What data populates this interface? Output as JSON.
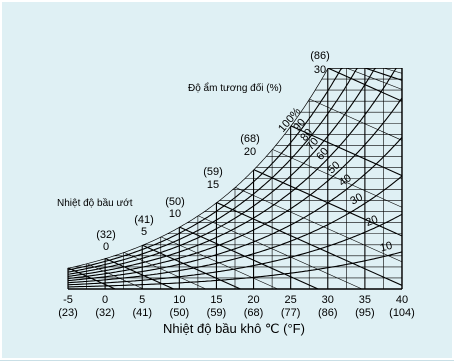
{
  "chart_data": {
    "type": "line",
    "title": "",
    "xlabel": "Nhiệt độ bầu khô ℃ (°F)",
    "ylabel": "",
    "x_tick_values": [
      -5,
      0,
      5,
      10,
      15,
      20,
      25,
      30,
      35,
      40
    ],
    "x_tick_labels": [
      "-5",
      "0",
      "5",
      "10",
      "15",
      "20",
      "25",
      "30",
      "35",
      "40"
    ],
    "x_tick_sublabels": [
      "(23)",
      "(32)",
      "(41)",
      "(50)",
      "(59)",
      "(68)",
      "(77)",
      "(86)",
      "(95)",
      "(104)"
    ],
    "xlim": [
      -5,
      40
    ],
    "wet_bulb_label": "Nhiệt độ bầu ướt",
    "wet_bulb_lines": [
      {
        "label": "0",
        "sublabel": "(32)",
        "t": 0
      },
      {
        "label": "5",
        "sublabel": "(41)",
        "t": 5
      },
      {
        "label": "10",
        "sublabel": "(50)",
        "t": 10
      },
      {
        "label": "15",
        "sublabel": "(59)",
        "t": 15
      },
      {
        "label": "20",
        "sublabel": "(68)",
        "t": 20
      },
      {
        "label": "30",
        "sublabel": "(86)",
        "t": 30
      }
    ],
    "rh_label": "Độ ẩm tương đối (%)",
    "rh_curves": [
      {
        "label": "100%",
        "rh": 100
      },
      {
        "label": "90",
        "rh": 90
      },
      {
        "label": "80",
        "rh": 80
      },
      {
        "label": "70",
        "rh": 70
      },
      {
        "label": "60",
        "rh": 60
      },
      {
        "label": "50",
        "rh": 50
      },
      {
        "label": "40",
        "rh": 40
      },
      {
        "label": "30",
        "rh": 30
      },
      {
        "label": "20",
        "rh": 20
      },
      {
        "label": "10",
        "rh": 10
      }
    ],
    "grid": true,
    "colors": {
      "background": "#dff0f4",
      "lines": "#000000"
    }
  }
}
